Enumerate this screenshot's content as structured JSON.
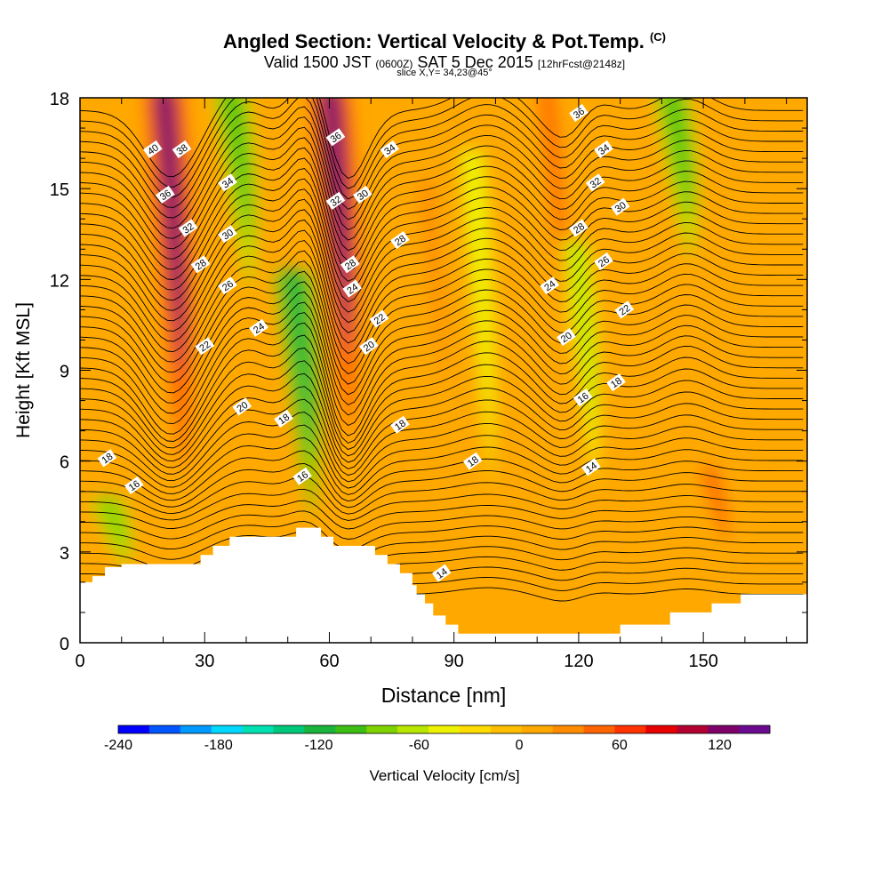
{
  "header": {
    "title": "Angled Section: Vertical Velocity & Pot.Temp.",
    "copyright": "(C)",
    "valid_prefix": "Valid 1500 JST",
    "valid_zulu": "(0600Z)",
    "valid_date": "SAT 5 Dec 2015",
    "forecast": "[12hrFcst@2148z]",
    "slice": "slice X,Y= 34,23@45°"
  },
  "chart_data": {
    "type": "heatmap",
    "xlabel": "Distance [nm]",
    "ylabel": "Height [Kft MSL]",
    "xlim": [
      0,
      175
    ],
    "ylim": [
      0,
      18
    ],
    "x_ticks": [
      0,
      30,
      60,
      90,
      120,
      150
    ],
    "y_ticks": [
      0,
      3,
      6,
      9,
      12,
      15,
      18
    ],
    "background_level": 20,
    "velocity_bands": [
      {
        "x": 24,
        "top_y": 18,
        "bottom_y": 5.5,
        "value": 140
      },
      {
        "x": 40,
        "top_y": 18,
        "bottom_y": 11.5,
        "value": -100
      },
      {
        "x": 55,
        "top_y": 12,
        "bottom_y": 4,
        "value": -110
      },
      {
        "x": 64,
        "top_y": 18,
        "bottom_y": 6.5,
        "value": 140
      },
      {
        "x": 87,
        "top_y": 15,
        "bottom_y": 6,
        "value": 50
      },
      {
        "x": 98,
        "top_y": 16,
        "bottom_y": 5,
        "value": -40
      },
      {
        "x": 116,
        "top_y": 18,
        "bottom_y": 9,
        "value": 60
      },
      {
        "x": 123,
        "top_y": 13,
        "bottom_y": 5,
        "value": -60
      },
      {
        "x": 146,
        "top_y": 18,
        "bottom_y": 12.5,
        "value": -100
      },
      {
        "x": 155,
        "top_y": 5.5,
        "bottom_y": 2.5,
        "value": 70
      },
      {
        "x": 10,
        "top_y": 4.5,
        "bottom_y": 2.5,
        "value": -80
      }
    ],
    "terrain": [
      [
        0,
        2
      ],
      [
        3,
        2
      ],
      [
        3,
        2.2
      ],
      [
        6,
        2.2
      ],
      [
        6,
        2.5
      ],
      [
        10,
        2.5
      ],
      [
        10,
        2.6
      ],
      [
        29,
        2.6
      ],
      [
        29,
        2.9
      ],
      [
        32,
        2.9
      ],
      [
        32,
        3.2
      ],
      [
        36,
        3.2
      ],
      [
        36,
        3.5
      ],
      [
        52,
        3.5
      ],
      [
        52,
        3.8
      ],
      [
        58,
        3.8
      ],
      [
        58,
        3.5
      ],
      [
        61,
        3.5
      ],
      [
        61,
        3.2
      ],
      [
        71,
        3.2
      ],
      [
        71,
        2.9
      ],
      [
        74,
        2.9
      ],
      [
        74,
        2.6
      ],
      [
        77,
        2.6
      ],
      [
        77,
        2.3
      ],
      [
        80,
        2.3
      ],
      [
        80,
        1.9
      ],
      [
        81,
        1.9
      ],
      [
        81,
        1.6
      ],
      [
        83,
        1.6
      ],
      [
        83,
        1.3
      ],
      [
        85,
        1.3
      ],
      [
        85,
        0.9
      ],
      [
        88,
        0.9
      ],
      [
        88,
        0.6
      ],
      [
        91,
        0.6
      ],
      [
        91,
        0.3
      ],
      [
        130,
        0.3
      ],
      [
        130,
        0.6
      ],
      [
        142,
        0.6
      ],
      [
        142,
        1.0
      ],
      [
        152,
        1.0
      ],
      [
        152,
        1.3
      ],
      [
        159,
        1.3
      ],
      [
        159,
        1.6
      ],
      [
        175,
        1.6
      ]
    ],
    "isotherm_labels": [
      {
        "x": 17.5,
        "y": 16.3,
        "text": "40"
      },
      {
        "x": 24.5,
        "y": 16.3,
        "text": "38"
      },
      {
        "x": 20.5,
        "y": 14.8,
        "text": "36"
      },
      {
        "x": 26,
        "y": 13.7,
        "text": "32"
      },
      {
        "x": 29,
        "y": 12.5,
        "text": "28"
      },
      {
        "x": 35.5,
        "y": 15.2,
        "text": "34"
      },
      {
        "x": 35.5,
        "y": 13.5,
        "text": "30"
      },
      {
        "x": 35.5,
        "y": 11.8,
        "text": "26"
      },
      {
        "x": 43,
        "y": 10.4,
        "text": "24"
      },
      {
        "x": 30,
        "y": 9.8,
        "text": "22"
      },
      {
        "x": 39,
        "y": 7.8,
        "text": "20"
      },
      {
        "x": 49,
        "y": 7.4,
        "text": "18"
      },
      {
        "x": 53.5,
        "y": 5.5,
        "text": "16"
      },
      {
        "x": 6.5,
        "y": 6.1,
        "text": "18"
      },
      {
        "x": 13,
        "y": 5.2,
        "text": "16"
      },
      {
        "x": 61.5,
        "y": 16.7,
        "text": "36"
      },
      {
        "x": 74.5,
        "y": 16.3,
        "text": "34"
      },
      {
        "x": 61.5,
        "y": 14.6,
        "text": "32"
      },
      {
        "x": 68,
        "y": 14.8,
        "text": "30"
      },
      {
        "x": 77,
        "y": 13.3,
        "text": "28"
      },
      {
        "x": 65,
        "y": 12.5,
        "text": "28"
      },
      {
        "x": 65.5,
        "y": 11.7,
        "text": "24"
      },
      {
        "x": 72,
        "y": 10.7,
        "text": "22"
      },
      {
        "x": 69.5,
        "y": 9.8,
        "text": "20"
      },
      {
        "x": 77,
        "y": 7.2,
        "text": "18"
      },
      {
        "x": 94.5,
        "y": 6.0,
        "text": "18"
      },
      {
        "x": 87,
        "y": 2.3,
        "text": "14"
      },
      {
        "x": 120,
        "y": 17.5,
        "text": "36"
      },
      {
        "x": 126,
        "y": 16.3,
        "text": "34"
      },
      {
        "x": 124,
        "y": 15.2,
        "text": "32"
      },
      {
        "x": 130,
        "y": 14.4,
        "text": "30"
      },
      {
        "x": 120,
        "y": 13.7,
        "text": "28"
      },
      {
        "x": 126,
        "y": 12.6,
        "text": "26"
      },
      {
        "x": 113,
        "y": 11.8,
        "text": "24"
      },
      {
        "x": 131,
        "y": 11.0,
        "text": "22"
      },
      {
        "x": 117,
        "y": 10.1,
        "text": "20"
      },
      {
        "x": 129,
        "y": 8.6,
        "text": "18"
      },
      {
        "x": 121,
        "y": 8.1,
        "text": "16"
      },
      {
        "x": 123,
        "y": 5.8,
        "text": "14"
      }
    ],
    "colorbar": {
      "title": "Vertical Velocity [cm/s]",
      "labels": [
        "-240",
        "-180",
        "-120",
        "-60",
        "0",
        "60",
        "120"
      ],
      "label_values": [
        -240,
        -180,
        -120,
        -60,
        0,
        60,
        120
      ],
      "min": -240,
      "max": 150,
      "step": 20,
      "colors": [
        "#0000ff",
        "#0055ff",
        "#0099ff",
        "#00d8ff",
        "#00e0b0",
        "#00c87a",
        "#1ab33c",
        "#3cbe14",
        "#7ed200",
        "#b8e600",
        "#eef200",
        "#ffdc00",
        "#ffbf00",
        "#ffa800",
        "#ff8c00",
        "#ff6400",
        "#ff3200",
        "#e60000",
        "#b40030",
        "#7d0069",
        "#6a0a8e"
      ]
    }
  }
}
